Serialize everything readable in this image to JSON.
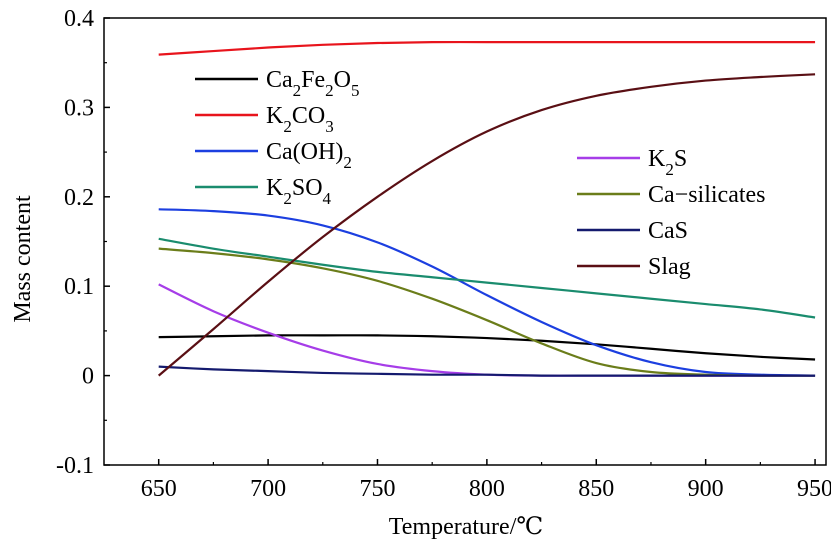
{
  "chart_data": {
    "type": "line",
    "title": "",
    "xlabel": "Temperature/℃",
    "ylabel": "Mass content",
    "xlim": [
      625,
      955
    ],
    "ylim": [
      -0.1,
      0.4
    ],
    "xticks": [
      650,
      700,
      750,
      800,
      850,
      900,
      950
    ],
    "yticks": [
      -0.1,
      0,
      0.1,
      0.2,
      0.3,
      0.4
    ],
    "xtick_labels": [
      "650",
      "700",
      "750",
      "800",
      "850",
      "900",
      "950"
    ],
    "ytick_labels": [
      "-0.1",
      "0",
      "0.1",
      "0.2",
      "0.3",
      "0.4"
    ],
    "grid": false,
    "x": [
      650,
      675,
      700,
      725,
      750,
      775,
      800,
      825,
      850,
      875,
      900,
      925,
      950
    ],
    "series": [
      {
        "name": "Ca2Fe2O5",
        "label_parts": [
          [
            "Ca",
            0
          ],
          [
            "2",
            1
          ],
          [
            "Fe",
            0
          ],
          [
            "2",
            1
          ],
          [
            "O",
            0
          ],
          [
            "5",
            1
          ]
        ],
        "color": "#000000",
        "values": [
          0.043,
          0.044,
          0.045,
          0.045,
          0.045,
          0.044,
          0.042,
          0.039,
          0.035,
          0.03,
          0.025,
          0.021,
          0.018
        ]
      },
      {
        "name": "K2CO3",
        "label_parts": [
          [
            "K",
            0
          ],
          [
            "2",
            1
          ],
          [
            "CO",
            0
          ],
          [
            "3",
            1
          ]
        ],
        "color": "#e8141c",
        "values": [
          0.359,
          0.363,
          0.367,
          0.37,
          0.372,
          0.373,
          0.373,
          0.373,
          0.373,
          0.373,
          0.373,
          0.373,
          0.373
        ]
      },
      {
        "name": "Ca(OH)2",
        "label_parts": [
          [
            "Ca(OH)",
            0
          ],
          [
            "2",
            1
          ]
        ],
        "color": "#1c3fe0",
        "values": [
          0.186,
          0.184,
          0.179,
          0.168,
          0.149,
          0.122,
          0.09,
          0.06,
          0.034,
          0.015,
          0.004,
          0.001,
          0.0
        ]
      },
      {
        "name": "K2SO4",
        "label_parts": [
          [
            "K",
            0
          ],
          [
            "2",
            1
          ],
          [
            "SO",
            0
          ],
          [
            "4",
            1
          ]
        ],
        "color": "#1a8c6e",
        "values": [
          0.153,
          0.142,
          0.133,
          0.124,
          0.116,
          0.11,
          0.104,
          0.098,
          0.092,
          0.086,
          0.08,
          0.074,
          0.065
        ]
      },
      {
        "name": "K2S",
        "label_parts": [
          [
            "K",
            0
          ],
          [
            "2",
            1
          ],
          [
            "S",
            0
          ]
        ],
        "color": "#a63de8",
        "values": [
          0.102,
          0.072,
          0.048,
          0.028,
          0.013,
          0.005,
          0.001,
          0.0,
          0.0,
          0.0,
          0.0,
          0.0,
          0.0
        ]
      },
      {
        "name": "Ca-silicates",
        "label_parts": [
          [
            "Ca−silicates",
            0
          ]
        ],
        "color": "#6b7d1a",
        "values": [
          0.142,
          0.137,
          0.13,
          0.12,
          0.106,
          0.086,
          0.062,
          0.036,
          0.014,
          0.004,
          0.001,
          0.0,
          0.0
        ]
      },
      {
        "name": "CaS",
        "label_parts": [
          [
            "CaS",
            0
          ]
        ],
        "color": "#141a6e",
        "values": [
          0.01,
          0.007,
          0.005,
          0.003,
          0.002,
          0.001,
          0.001,
          0.0,
          0.0,
          0.0,
          0.0,
          0.0,
          0.0
        ]
      },
      {
        "name": "Slag",
        "label_parts": [
          [
            "Slag",
            0
          ]
        ],
        "color": "#5a0f14",
        "values": [
          0.0,
          0.052,
          0.105,
          0.155,
          0.2,
          0.24,
          0.273,
          0.297,
          0.313,
          0.323,
          0.33,
          0.334,
          0.337
        ]
      }
    ],
    "legend": [
      {
        "placement": "upper-left",
        "series": [
          "Ca2Fe2O5",
          "K2CO3",
          "Ca(OH)2",
          "K2SO4"
        ]
      },
      {
        "placement": "center-right",
        "series": [
          "K2S",
          "Ca-silicates",
          "CaS",
          "Slag"
        ]
      }
    ]
  }
}
